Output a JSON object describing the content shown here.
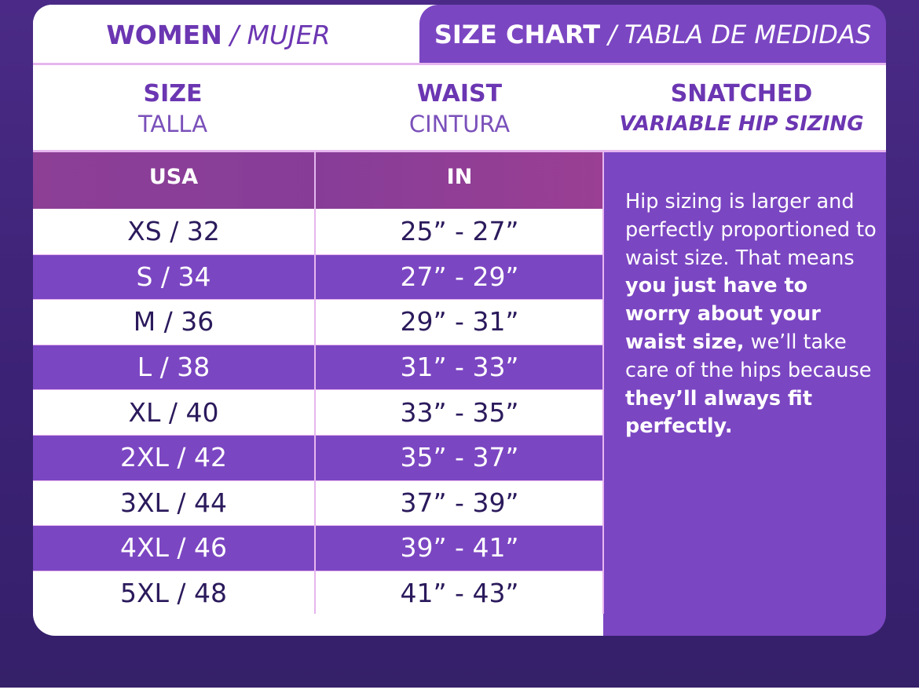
{
  "tab_women": {
    "bold": "WOMEN",
    "italic": "/ MUJER"
  },
  "tab_chart": {
    "bold": "SIZE CHART",
    "italic": "/ TABLA DE MEDIDAS"
  },
  "headers": {
    "size": {
      "main": "SIZE",
      "sub": "TALLA"
    },
    "waist": {
      "main": "WAIST",
      "sub": "CINTURA"
    },
    "snatched": {
      "main": "SNATCHED",
      "sub": "VARIABLE HIP SIZING"
    }
  },
  "units": {
    "usa": "USA",
    "in": "IN"
  },
  "rows": [
    {
      "size": "XS / 32",
      "waist": "25” - 27”"
    },
    {
      "size": "S / 34",
      "waist": "27” - 29”"
    },
    {
      "size": "M / 36",
      "waist": "29” - 31”"
    },
    {
      "size": "L / 38",
      "waist": "31” - 33”"
    },
    {
      "size": "XL / 40",
      "waist": "33” - 35”"
    },
    {
      "size": "2XL / 42",
      "waist": "35” - 37”"
    },
    {
      "size": "3XL / 44",
      "waist": "37” - 39”"
    },
    {
      "size": "4XL / 46",
      "waist": "39” - 41”"
    },
    {
      "size": "5XL / 48",
      "waist": "41” - 43”"
    }
  ],
  "hip_text": {
    "p1": "Hip sizing is larger and perfectly proportioned to waist size. That means",
    "b1": "you just have to worry about your waist size,",
    "p2": "we’ll take care of the hips because",
    "b2": "they’ll always fit perfectly."
  },
  "colors": {
    "accent_purple": "#7b46c2",
    "dark_purple": "#3c2275",
    "magenta_header": "#8d3f96",
    "text_dark": "#2b1a5c"
  }
}
